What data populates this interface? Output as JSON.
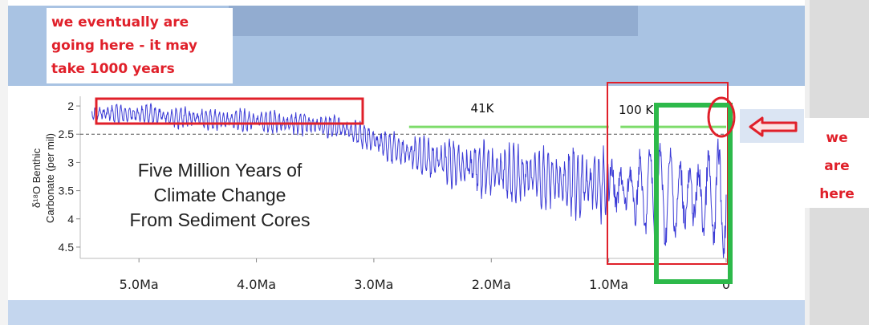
{
  "annotations": {
    "top_note_lines": [
      "we eventually are",
      "going here - it may",
      "take 1000 years"
    ],
    "right_note_lines": [
      "we",
      "are",
      "here"
    ],
    "label_41k": "41K",
    "label_100k": "100 K"
  },
  "chart_data": {
    "type": "line",
    "title": "Five Million Years of Climate Change From Sediment Cores",
    "title_lines": [
      "Five Million Years of",
      "Climate Change",
      "From Sediment Cores"
    ],
    "ylabel_lines": [
      "δ¹⁸O Benthic",
      "Carbonate (per mil)"
    ],
    "xlabel": "",
    "x_unit": "Ma",
    "x_reversed": true,
    "xlim": [
      5.5,
      0
    ],
    "ylim": [
      4.7,
      1.8
    ],
    "y_inverted": true,
    "x_ticks": [
      {
        "value": 5.0,
        "label": "5.0Ma"
      },
      {
        "value": 4.0,
        "label": "4.0Ma"
      },
      {
        "value": 3.0,
        "label": "3.0Ma"
      },
      {
        "value": 2.0,
        "label": "2.0Ma"
      },
      {
        "value": 1.0,
        "label": "1.0Ma"
      },
      {
        "value": 0,
        "label": "0"
      }
    ],
    "y_ticks": [
      {
        "value": 2,
        "label": "2"
      },
      {
        "value": 2.5,
        "label": "2.5"
      },
      {
        "value": 3,
        "label": "3"
      },
      {
        "value": 3.5,
        "label": "3.5"
      },
      {
        "value": 4,
        "label": "4"
      },
      {
        "value": 4.5,
        "label": "4.5"
      }
    ],
    "reference_line_y": 2.5,
    "period_lines": [
      {
        "label": "41K",
        "x_start": 2.7,
        "x_end": 1.0
      },
      {
        "label": "100 K",
        "x_start": 0.9,
        "x_end": 0
      }
    ],
    "series": [
      {
        "color": "#3b3bd6",
        "envelope": [
          {
            "x": 5.4,
            "y_min": 1.95,
            "y_max": 2.3
          },
          {
            "x": 5.0,
            "y_min": 1.95,
            "y_max": 2.35
          },
          {
            "x": 4.5,
            "y_min": 2.0,
            "y_max": 2.45
          },
          {
            "x": 4.0,
            "y_min": 2.05,
            "y_max": 2.5
          },
          {
            "x": 3.5,
            "y_min": 2.1,
            "y_max": 2.55
          },
          {
            "x": 3.2,
            "y_min": 2.2,
            "y_max": 2.65
          },
          {
            "x": 3.0,
            "y_min": 2.35,
            "y_max": 2.9
          },
          {
            "x": 2.6,
            "y_min": 2.5,
            "y_max": 3.3
          },
          {
            "x": 2.0,
            "y_min": 2.6,
            "y_max": 3.7
          },
          {
            "x": 1.5,
            "y_min": 2.7,
            "y_max": 3.9
          },
          {
            "x": 1.0,
            "y_min": 2.7,
            "y_max": 4.2
          },
          {
            "x": 0.5,
            "y_min": 2.65,
            "y_max": 4.55
          },
          {
            "x": 0.0,
            "y_min": 2.55,
            "y_max": 4.7
          }
        ]
      }
    ]
  }
}
